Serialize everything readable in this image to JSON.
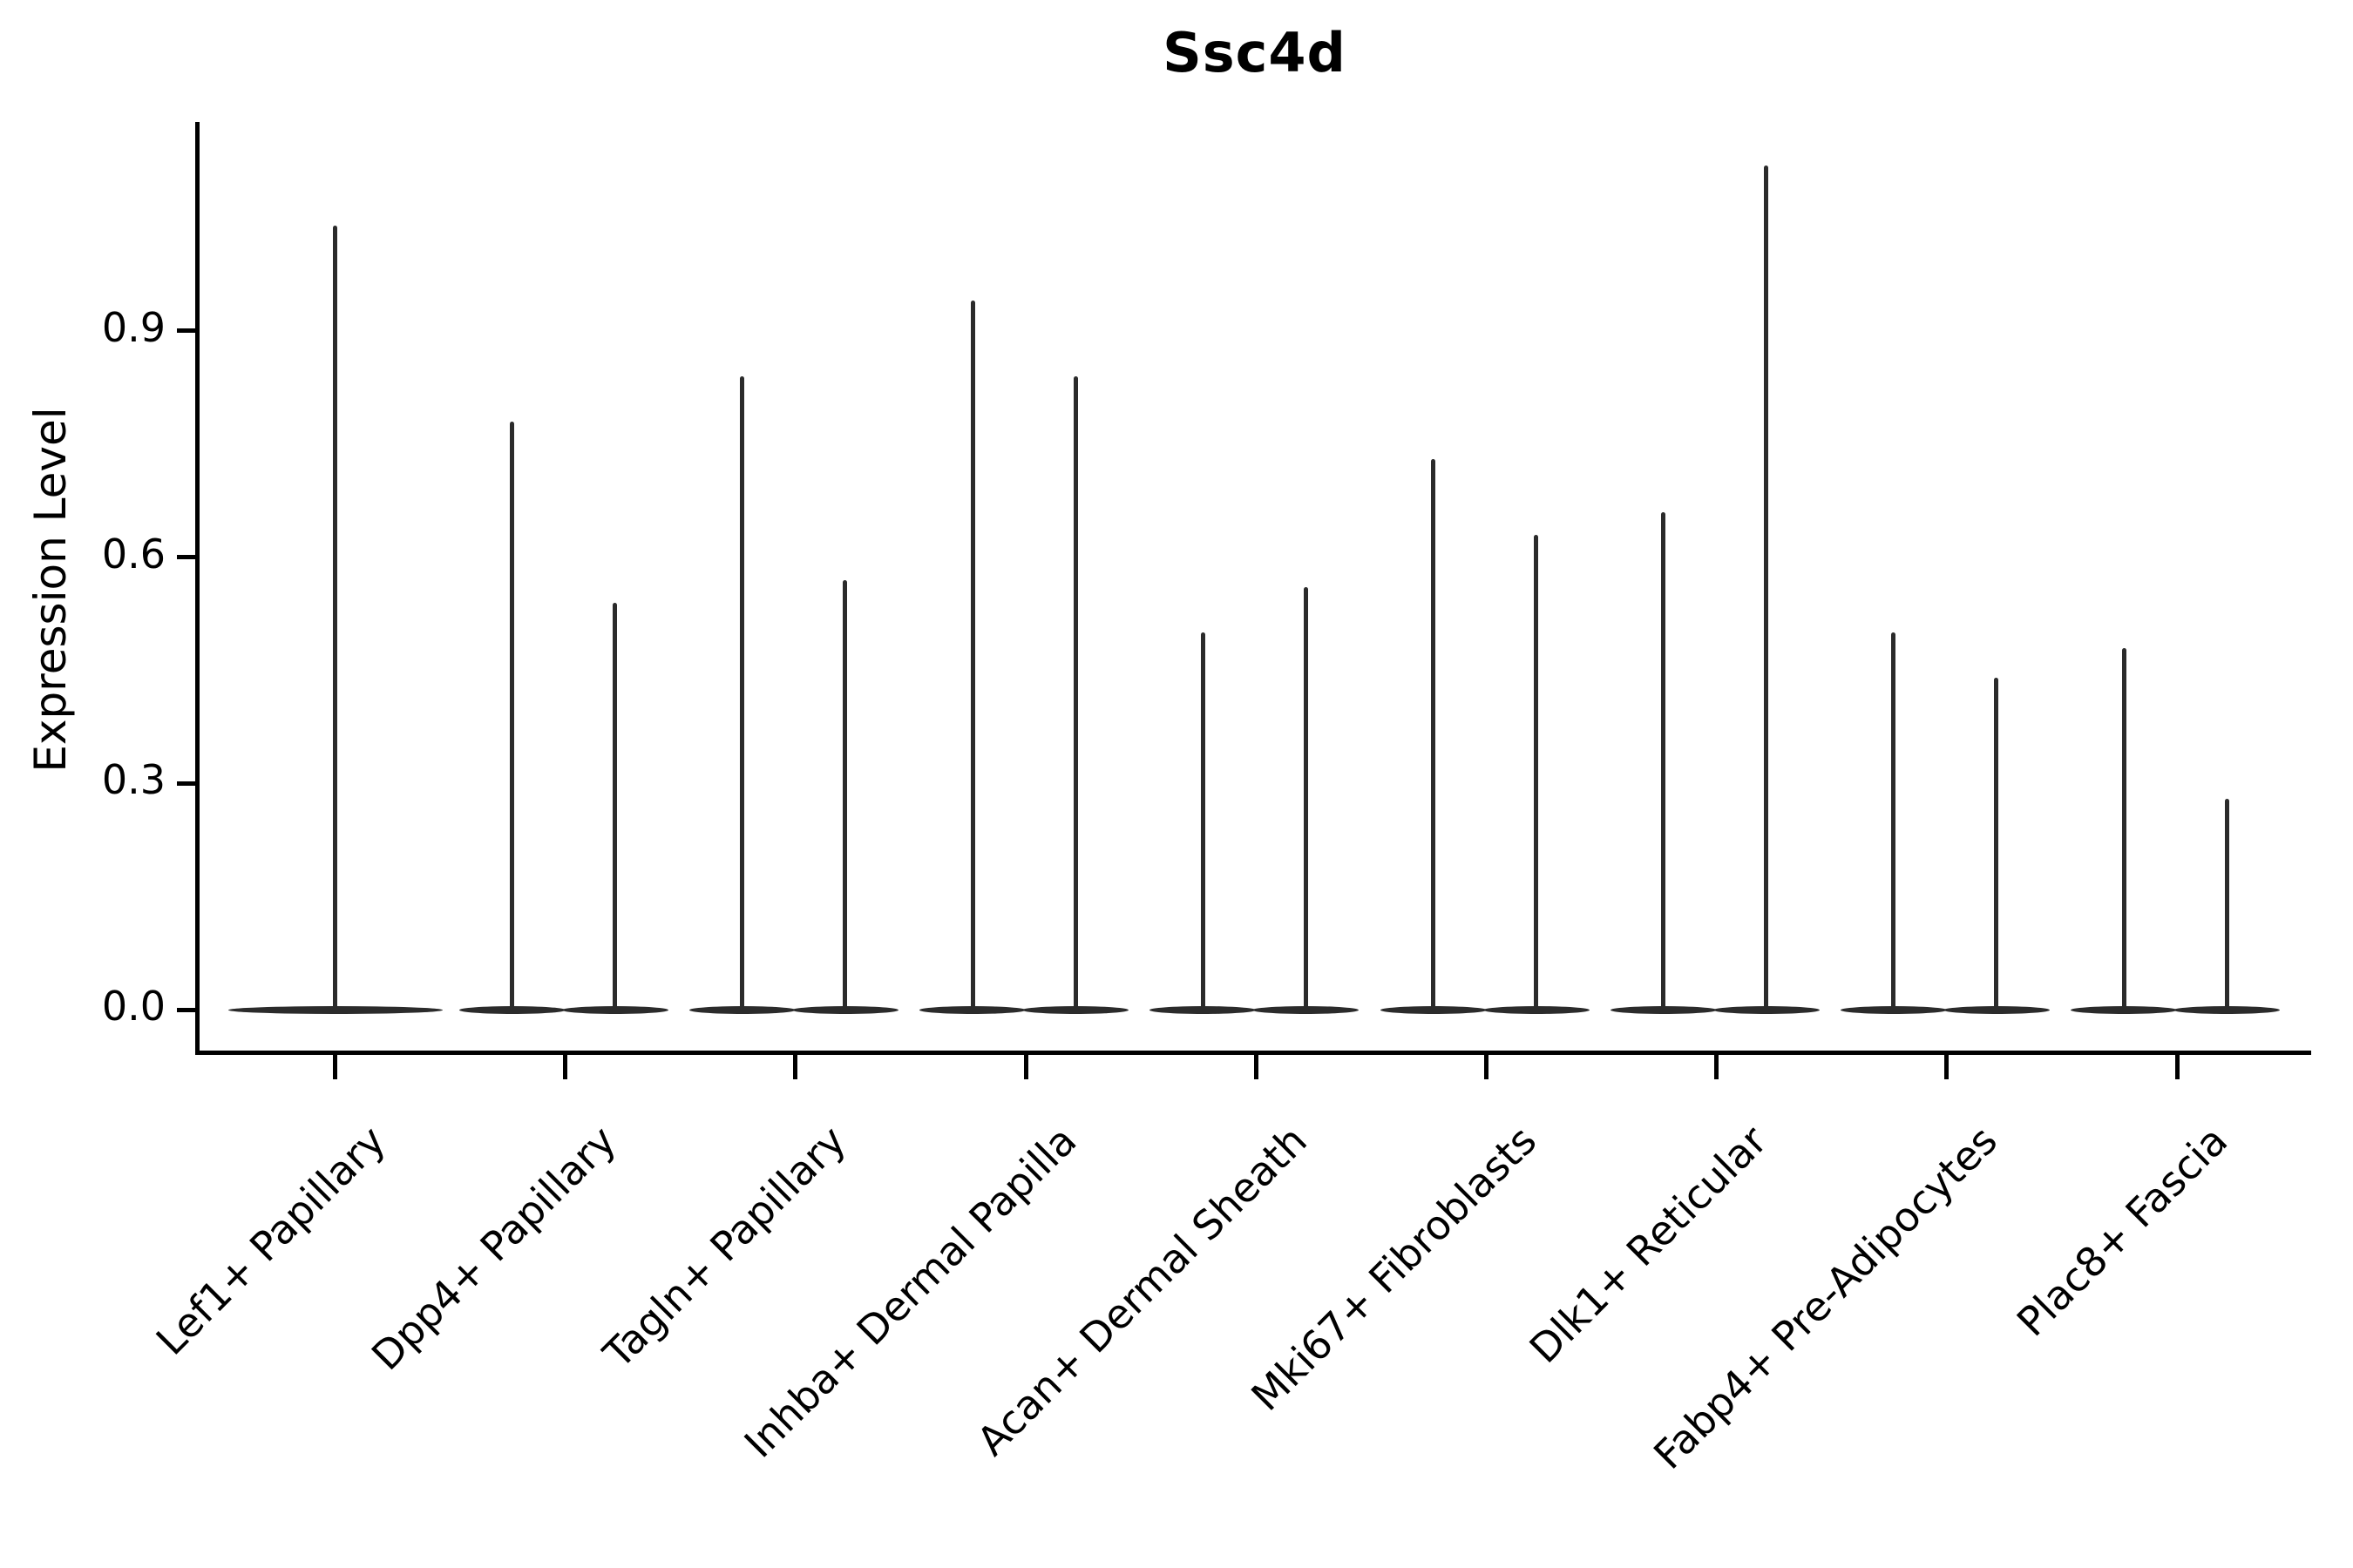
{
  "title": "Ssc4d",
  "y_axis": {
    "label": "Expression Level",
    "tick_labels": [
      "0.0",
      "0.3",
      "0.6",
      "0.9"
    ]
  },
  "colors": {
    "ink": "#2b2b2b",
    "axis": "#000000",
    "background": "#ffffff"
  },
  "chart_data": {
    "type": "violin",
    "title": "Ssc4d",
    "xlabel": "",
    "ylabel": "Expression Level",
    "ylim": [
      0,
      1.24
    ],
    "yticks": [
      0.0,
      0.3,
      0.6,
      0.9
    ],
    "grid": false,
    "legend": "none",
    "orientation": "vertical",
    "description": "Violin plot of Ssc4d expression; most cells at 0 giving wide flat bases with thin spikes up to the maximum expression value; two sub-violins per category except the first which has one full-width violin",
    "categories": [
      "Lef1+ Papillary",
      "Dpp4+ Papillary",
      "Tagln+ Papillary",
      "Inhba+ Dermal Papilla",
      "Acan+ Dermal Sheath",
      "Mki67+ Fibroblasts",
      "Dlk1+ Reticular",
      "Fabp4+ Pre-Adipocytes",
      "Plac8+ Fascia"
    ],
    "violin_max_values": [
      [
        1.04
      ],
      [
        0.78,
        0.54
      ],
      [
        0.84,
        0.57
      ],
      [
        0.94,
        0.84
      ],
      [
        0.5,
        0.56
      ],
      [
        0.73,
        0.63
      ],
      [
        0.66,
        1.12
      ],
      [
        0.5,
        0.44
      ],
      [
        0.48,
        0.28
      ]
    ],
    "baseline_value": 0.0
  }
}
